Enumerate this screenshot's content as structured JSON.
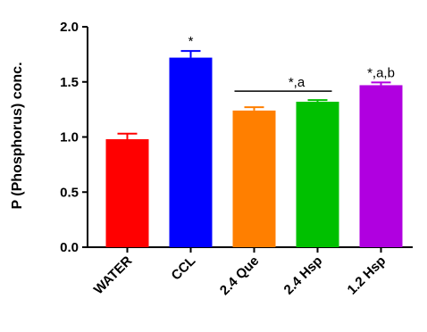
{
  "chart_data": {
    "type": "bar",
    "ylabel": "P (Phosphorus) conc.",
    "xlabel": "",
    "ylim": [
      0,
      2.0
    ],
    "yticks": [
      "0.0",
      "0.5",
      "1.0",
      "1.5",
      "2.0"
    ],
    "categories": [
      "WATER",
      "CCL",
      "2.4 Que",
      "2.4 Hsp",
      "1.2 Hsp"
    ],
    "values": [
      0.98,
      1.72,
      1.24,
      1.32,
      1.47
    ],
    "errors": [
      0.05,
      0.06,
      0.03,
      0.015,
      0.025
    ],
    "colors": [
      "#ff0000",
      "#0000ff",
      "#ff7f00",
      "#00c000",
      "#b000e0"
    ],
    "annotations": [
      "",
      "*",
      "",
      "",
      "*,a,b"
    ],
    "group_annotation": {
      "text": "*,a",
      "from": "2.4 Que",
      "to": "2.4 Hsp"
    },
    "grid": false
  }
}
